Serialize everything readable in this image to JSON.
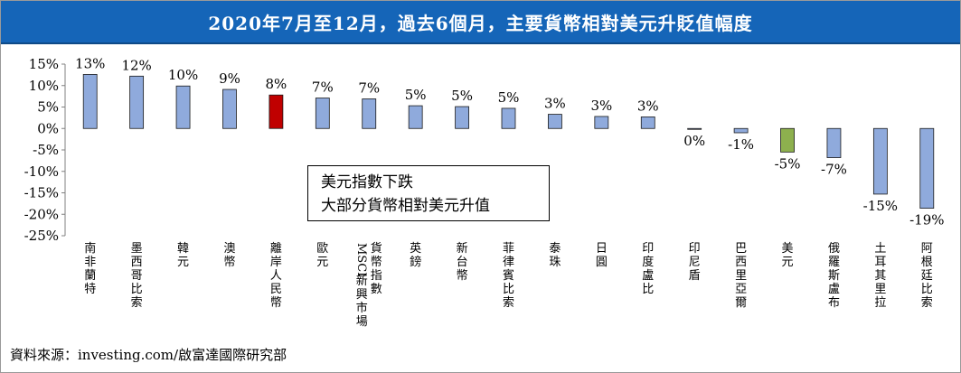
{
  "title": "2020年7月至12月，過去6個月，主要貨幣相對美元升貶值幅度",
  "source": "資料來源：investing.com/啟富達國際研究部",
  "annotation": {
    "line1": "美元指數下跌",
    "line2": "大部分貨幣相對美元升值"
  },
  "colors": {
    "title_bg": "#1565b8",
    "default_bar": "#8faadc",
    "highlight_bar": "#c00000",
    "usd_bar": "#8db04e"
  },
  "chart_data": {
    "type": "bar",
    "categories": [
      "南非蘭特",
      "墨西哥比索",
      "韓元",
      "澳幣",
      "離岸人民幣",
      "歐元",
      "MSCI新興市場貨幣指數",
      "英鎊",
      "新台幣",
      "菲律賓比索",
      "泰珠",
      "日圓",
      "印度盧比",
      "印尼盾",
      "巴西里亞爾",
      "美元",
      "俄羅斯盧布",
      "土耳其里拉",
      "阿根廷比索"
    ],
    "category_lines": [
      [
        "南非蘭特"
      ],
      [
        "墨西哥比索"
      ],
      [
        "韓元"
      ],
      [
        "澳幣"
      ],
      [
        "離岸人民幣"
      ],
      [
        "歐元"
      ],
      [
        "MSCI新興市場",
        "貨幣指數"
      ],
      [
        "英鎊"
      ],
      [
        "新台幣"
      ],
      [
        "菲律賓比索"
      ],
      [
        "泰珠"
      ],
      [
        "日圓"
      ],
      [
        "印度盧比"
      ],
      [
        "印尼盾"
      ],
      [
        "巴西里亞爾"
      ],
      [
        "美元"
      ],
      [
        "俄羅斯盧布"
      ],
      [
        "土耳其里拉"
      ],
      [
        "阿根廷比索"
      ]
    ],
    "values": [
      12.6,
      12.2,
      9.9,
      9.1,
      7.8,
      7.1,
      6.9,
      5.3,
      5.1,
      4.7,
      3.3,
      2.8,
      2.7,
      -0.2,
      -1.0,
      -5.5,
      -6.8,
      -15.3,
      -18.6
    ],
    "data_labels": [
      "13%",
      "12%",
      "10%",
      "9%",
      "8%",
      "7%",
      "7%",
      "5%",
      "5%",
      "5%",
      "3%",
      "3%",
      "3%",
      "0%",
      "-1%",
      "-5%",
      "-7%",
      "-15%",
      "-19%"
    ],
    "highlight_index": 4,
    "usd_index": 15,
    "ylim": [
      -25,
      15
    ],
    "yticks": [
      15,
      10,
      5,
      0,
      -5,
      -10,
      -15,
      -20,
      -25
    ],
    "ytick_labels": [
      "15%",
      "10%",
      "5%",
      "0%",
      "-5%",
      "-10%",
      "-15%",
      "-20%",
      "-25%"
    ],
    "grid": false
  }
}
